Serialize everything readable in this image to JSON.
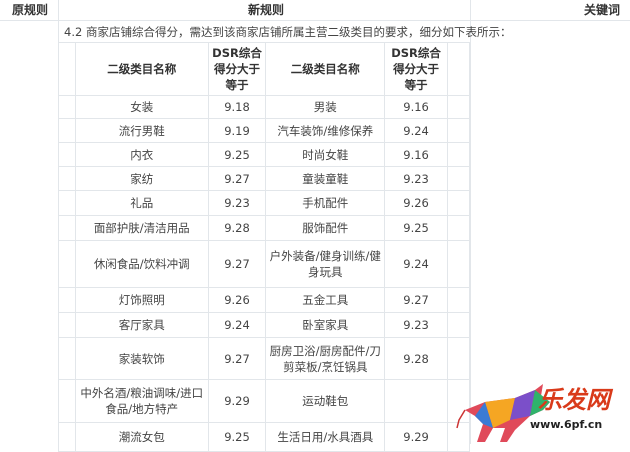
{
  "header": {
    "original": "原规则",
    "new": "新规则",
    "keywords": "关键词"
  },
  "intro": "4.2 商家店铺综合得分，需达到该商家店铺所属主营二级类目的要求，细分如下表所示：",
  "table": {
    "headers": [
      "二级类目名称",
      "DSR综合得分大于等于",
      "二级类目名称",
      "DSR综合得分大于等于"
    ],
    "rows": [
      [
        "女装",
        "9.18",
        "男装",
        "9.16"
      ],
      [
        "流行男鞋",
        "9.19",
        "汽车装饰/维修保养",
        "9.24"
      ],
      [
        "内衣",
        "9.25",
        "时尚女鞋",
        "9.16"
      ],
      [
        "家纺",
        "9.27",
        "童装童鞋",
        "9.23"
      ],
      [
        "礼品",
        "9.23",
        "手机配件",
        "9.26"
      ],
      [
        "面部护肤/清洁用品",
        "9.28",
        "服饰配件",
        "9.25"
      ],
      [
        "休闲食品/饮料冲调",
        "9.27",
        "户外装备/健身训练/健身玩具",
        "9.24"
      ],
      [
        "灯饰照明",
        "9.26",
        "五金工具",
        "9.27"
      ],
      [
        "客厅家具",
        "9.24",
        "卧室家具",
        "9.23"
      ],
      [
        "家装软饰",
        "9.27",
        "厨房卫浴/厨房配件/刀剪菜板/烹饪锅具",
        "9.28"
      ],
      [
        "中外名酒/粮油调味/进口食品/地方特产",
        "9.29",
        "运动鞋包",
        ""
      ],
      [
        "潮流女包",
        "9.25",
        "生活日用/水具酒具",
        "9.29"
      ]
    ]
  },
  "watermark": {
    "name": "乐发网",
    "url": "www.6pf.cn"
  }
}
